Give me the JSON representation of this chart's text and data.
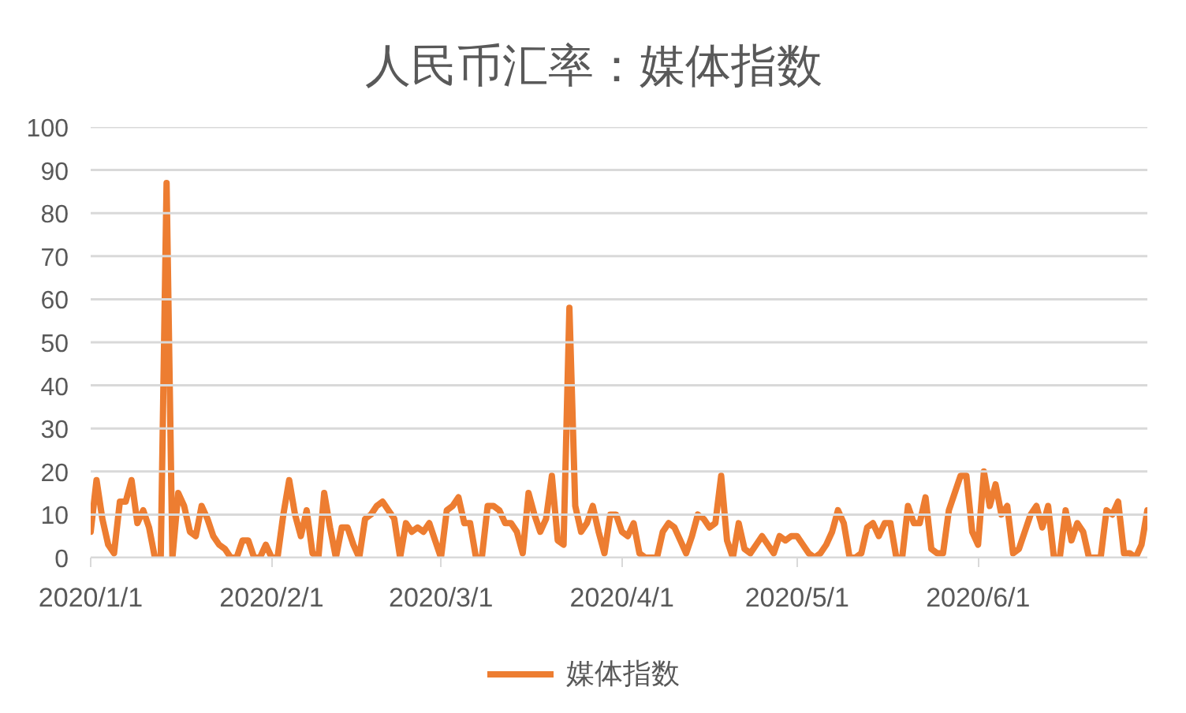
{
  "chart_data": {
    "type": "line",
    "title": "人民币汇率：媒体指数",
    "x": [
      "2020-01-01",
      "2020-01-02",
      "2020-01-03",
      "2020-01-04",
      "2020-01-05",
      "2020-01-06",
      "2020-01-07",
      "2020-01-08",
      "2020-01-09",
      "2020-01-10",
      "2020-01-11",
      "2020-01-12",
      "2020-01-13",
      "2020-01-14",
      "2020-01-15",
      "2020-01-16",
      "2020-01-17",
      "2020-01-18",
      "2020-01-19",
      "2020-01-20",
      "2020-01-21",
      "2020-01-22",
      "2020-01-23",
      "2020-01-24",
      "2020-01-25",
      "2020-01-26",
      "2020-01-27",
      "2020-01-28",
      "2020-01-29",
      "2020-01-30",
      "2020-01-31",
      "2020-02-01",
      "2020-02-02",
      "2020-02-03",
      "2020-02-04",
      "2020-02-05",
      "2020-02-06",
      "2020-02-07",
      "2020-02-08",
      "2020-02-09",
      "2020-02-10",
      "2020-02-11",
      "2020-02-12",
      "2020-02-13",
      "2020-02-14",
      "2020-02-15",
      "2020-02-16",
      "2020-02-17",
      "2020-02-18",
      "2020-02-19",
      "2020-02-20",
      "2020-02-21",
      "2020-02-22",
      "2020-02-23",
      "2020-02-24",
      "2020-02-25",
      "2020-02-26",
      "2020-02-27",
      "2020-02-28",
      "2020-02-29",
      "2020-03-01",
      "2020-03-02",
      "2020-03-03",
      "2020-03-04",
      "2020-03-05",
      "2020-03-06",
      "2020-03-07",
      "2020-03-08",
      "2020-03-09",
      "2020-03-10",
      "2020-03-11",
      "2020-03-12",
      "2020-03-13",
      "2020-03-14",
      "2020-03-15",
      "2020-03-16",
      "2020-03-17",
      "2020-03-18",
      "2020-03-19",
      "2020-03-20",
      "2020-03-21",
      "2020-03-22",
      "2020-03-23",
      "2020-03-24",
      "2020-03-25",
      "2020-03-26",
      "2020-03-27",
      "2020-03-28",
      "2020-03-29",
      "2020-03-30",
      "2020-03-31",
      "2020-04-01",
      "2020-04-02",
      "2020-04-03",
      "2020-04-04",
      "2020-04-05",
      "2020-04-06",
      "2020-04-07",
      "2020-04-08",
      "2020-04-09",
      "2020-04-10",
      "2020-04-11",
      "2020-04-12",
      "2020-04-13",
      "2020-04-14",
      "2020-04-15",
      "2020-04-16",
      "2020-04-17",
      "2020-04-18",
      "2020-04-19",
      "2020-04-20",
      "2020-04-21",
      "2020-04-22",
      "2020-04-23",
      "2020-04-24",
      "2020-04-25",
      "2020-04-26",
      "2020-04-27",
      "2020-04-28",
      "2020-04-29",
      "2020-04-30",
      "2020-05-01",
      "2020-05-02",
      "2020-05-03",
      "2020-05-04",
      "2020-05-05",
      "2020-05-06",
      "2020-05-07",
      "2020-05-08",
      "2020-05-09",
      "2020-05-10",
      "2020-05-11",
      "2020-05-12",
      "2020-05-13",
      "2020-05-14",
      "2020-05-15",
      "2020-05-16",
      "2020-05-17",
      "2020-05-18",
      "2020-05-19",
      "2020-05-20",
      "2020-05-21",
      "2020-05-22",
      "2020-05-23",
      "2020-05-24",
      "2020-05-25",
      "2020-05-26",
      "2020-05-27",
      "2020-05-28",
      "2020-05-29",
      "2020-05-30",
      "2020-05-31",
      "2020-06-01",
      "2020-06-02",
      "2020-06-03",
      "2020-06-04",
      "2020-06-05",
      "2020-06-06",
      "2020-06-07",
      "2020-06-08",
      "2020-06-09",
      "2020-06-10",
      "2020-06-11",
      "2020-06-12",
      "2020-06-13",
      "2020-06-14",
      "2020-06-15",
      "2020-06-16",
      "2020-06-17",
      "2020-06-18",
      "2020-06-19",
      "2020-06-20",
      "2020-06-21",
      "2020-06-22",
      "2020-06-23",
      "2020-06-24",
      "2020-06-25",
      "2020-06-26",
      "2020-06-27",
      "2020-06-28",
      "2020-06-29",
      "2020-06-30"
    ],
    "series": [
      {
        "name": "媒体指数",
        "color": "#ed7d31",
        "values": [
          6,
          18,
          9,
          3,
          1,
          13,
          13,
          18,
          8,
          11,
          7,
          0,
          0,
          87,
          0,
          15,
          12,
          6,
          5,
          12,
          9,
          5,
          3,
          2,
          0,
          0,
          4,
          4,
          0,
          0,
          3,
          0,
          0,
          10,
          18,
          10,
          5,
          11,
          1,
          0,
          15,
          7,
          0,
          7,
          7,
          3,
          0,
          9,
          10,
          12,
          13,
          11,
          9,
          0,
          8,
          6,
          7,
          6,
          8,
          4,
          0,
          11,
          12,
          14,
          8,
          8,
          0,
          0,
          12,
          12,
          11,
          8,
          8,
          6,
          1,
          15,
          10,
          6,
          9,
          19,
          4,
          3,
          58,
          12,
          6,
          8,
          12,
          6,
          1,
          10,
          10,
          6,
          5,
          8,
          1,
          0,
          0,
          0,
          6,
          8,
          7,
          4,
          1,
          5,
          10,
          9,
          7,
          8,
          19,
          4,
          0,
          8,
          2,
          1,
          3,
          5,
          3,
          1,
          5,
          4,
          5,
          5,
          3,
          1,
          0,
          1,
          3,
          6,
          11,
          8,
          0,
          0,
          1,
          7,
          8,
          5,
          8,
          8,
          0,
          0,
          12,
          8,
          8,
          14,
          2,
          1,
          1,
          11,
          15,
          19,
          19,
          6,
          3,
          20,
          12,
          17,
          10,
          12,
          1,
          2,
          6,
          10,
          12,
          7,
          12,
          0,
          0,
          11,
          4,
          8,
          6,
          0,
          0,
          0,
          11,
          10,
          13,
          1,
          1,
          0,
          3,
          11
        ]
      }
    ],
    "xlim": [
      "2020-01-01",
      "2020-06-30"
    ],
    "xticks": [
      {
        "value": "2020-01-01",
        "label": "2020/1/1"
      },
      {
        "value": "2020-02-01",
        "label": "2020/2/1"
      },
      {
        "value": "2020-03-01",
        "label": "2020/3/1"
      },
      {
        "value": "2020-04-01",
        "label": "2020/4/1"
      },
      {
        "value": "2020-05-01",
        "label": "2020/5/1"
      },
      {
        "value": "2020-06-01",
        "label": "2020/6/1"
      }
    ],
    "ylim": [
      0,
      100
    ],
    "yticks": [
      0,
      10,
      20,
      30,
      40,
      50,
      60,
      70,
      80,
      90,
      100
    ],
    "grid": "y",
    "legend": "bottom",
    "line_style": "solid"
  }
}
